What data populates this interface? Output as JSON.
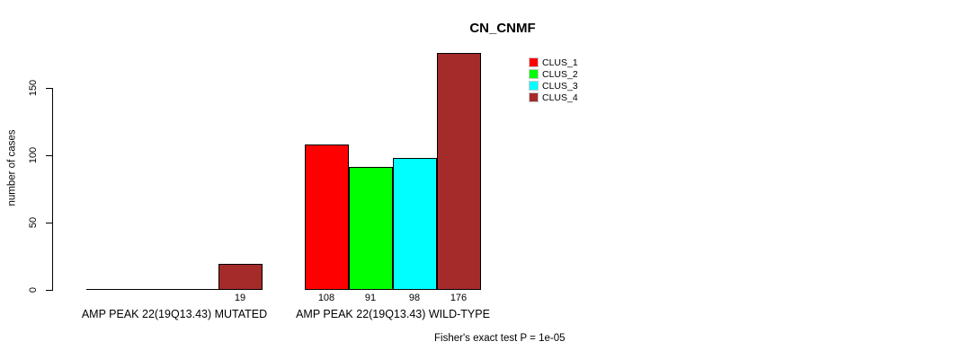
{
  "chart": {
    "title": "CN_CNMF",
    "ylabel": "number of cases",
    "footnote": "Fisher's exact test P = 1e-05"
  },
  "chart_data": {
    "type": "bar",
    "title": "CN_CNMF",
    "xlabel": "",
    "ylabel": "number of cases",
    "ylim": [
      0,
      180
    ],
    "yticks": [
      0,
      50,
      100,
      150
    ],
    "grid": false,
    "legend_position": "top-right",
    "annotation": "Fisher's exact test P = 1e-05",
    "series": [
      {
        "name": "CLUS_1",
        "color": "#ff0000"
      },
      {
        "name": "CLUS_2",
        "color": "#00ff00"
      },
      {
        "name": "CLUS_3",
        "color": "#00ffff"
      },
      {
        "name": "CLUS_4",
        "color": "#a52a2a"
      }
    ],
    "groups": [
      {
        "label": "AMP PEAK 22(19Q13.43) MUTATED",
        "values": [
          0,
          0,
          0,
          19
        ],
        "value_labels": [
          "",
          "",
          "",
          "19"
        ]
      },
      {
        "label": "AMP PEAK 22(19Q13.43) WILD-TYPE",
        "values": [
          108,
          91,
          98,
          176
        ],
        "value_labels": [
          "108",
          "91",
          "98",
          "176"
        ]
      }
    ]
  }
}
